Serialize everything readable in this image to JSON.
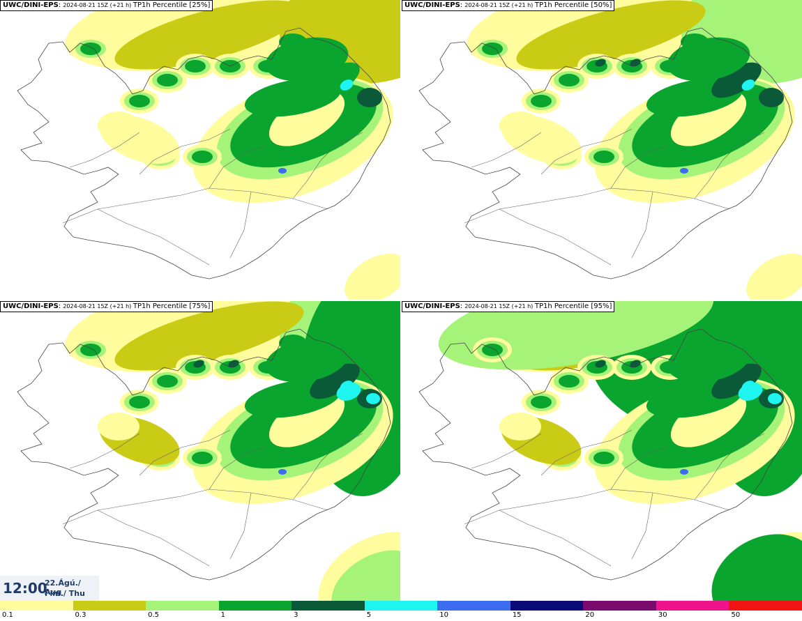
{
  "colors": {
    "c0_1": "#fffc9e",
    "c0_3": "#c9cb14",
    "c0_5": "#a6f37a",
    "c1": "#0aa52e",
    "c3": "#0a5a3a",
    "c5": "#1ef5f0",
    "c10": "#3c6cf0",
    "c15": "#0a0a78",
    "c20": "#7a0a6e",
    "c30": "#f0148c",
    "c50": "#f01414"
  },
  "panels": [
    {
      "model": "UWC/DINI-EPS",
      "run": "2024-08-21 15Z (+21 h)",
      "field": "TP1h Percentile [25%]"
    },
    {
      "model": "UWC/DINI-EPS",
      "run": "2024-08-21 15Z (+21 h)",
      "field": "TP1h Percentile [50%]"
    },
    {
      "model": "UWC/DINI-EPS",
      "run": "2024-08-21 15Z (+21 h)",
      "field": "TP1h Percentile [75%]"
    },
    {
      "model": "UWC/DINI-EPS",
      "run": "2024-08-21 15Z (+21 h)",
      "field": "TP1h Percentile [95%]"
    }
  ],
  "valid_time": {
    "time": "12:00",
    "date_line1": "22.Ágú./ Aug",
    "date_line2": "Fim./ Thu"
  },
  "colorbar": {
    "labels": [
      "0.1",
      "0.3",
      "0.5",
      "1",
      "3",
      "5",
      "10",
      "15",
      "20",
      "30",
      "50"
    ]
  }
}
